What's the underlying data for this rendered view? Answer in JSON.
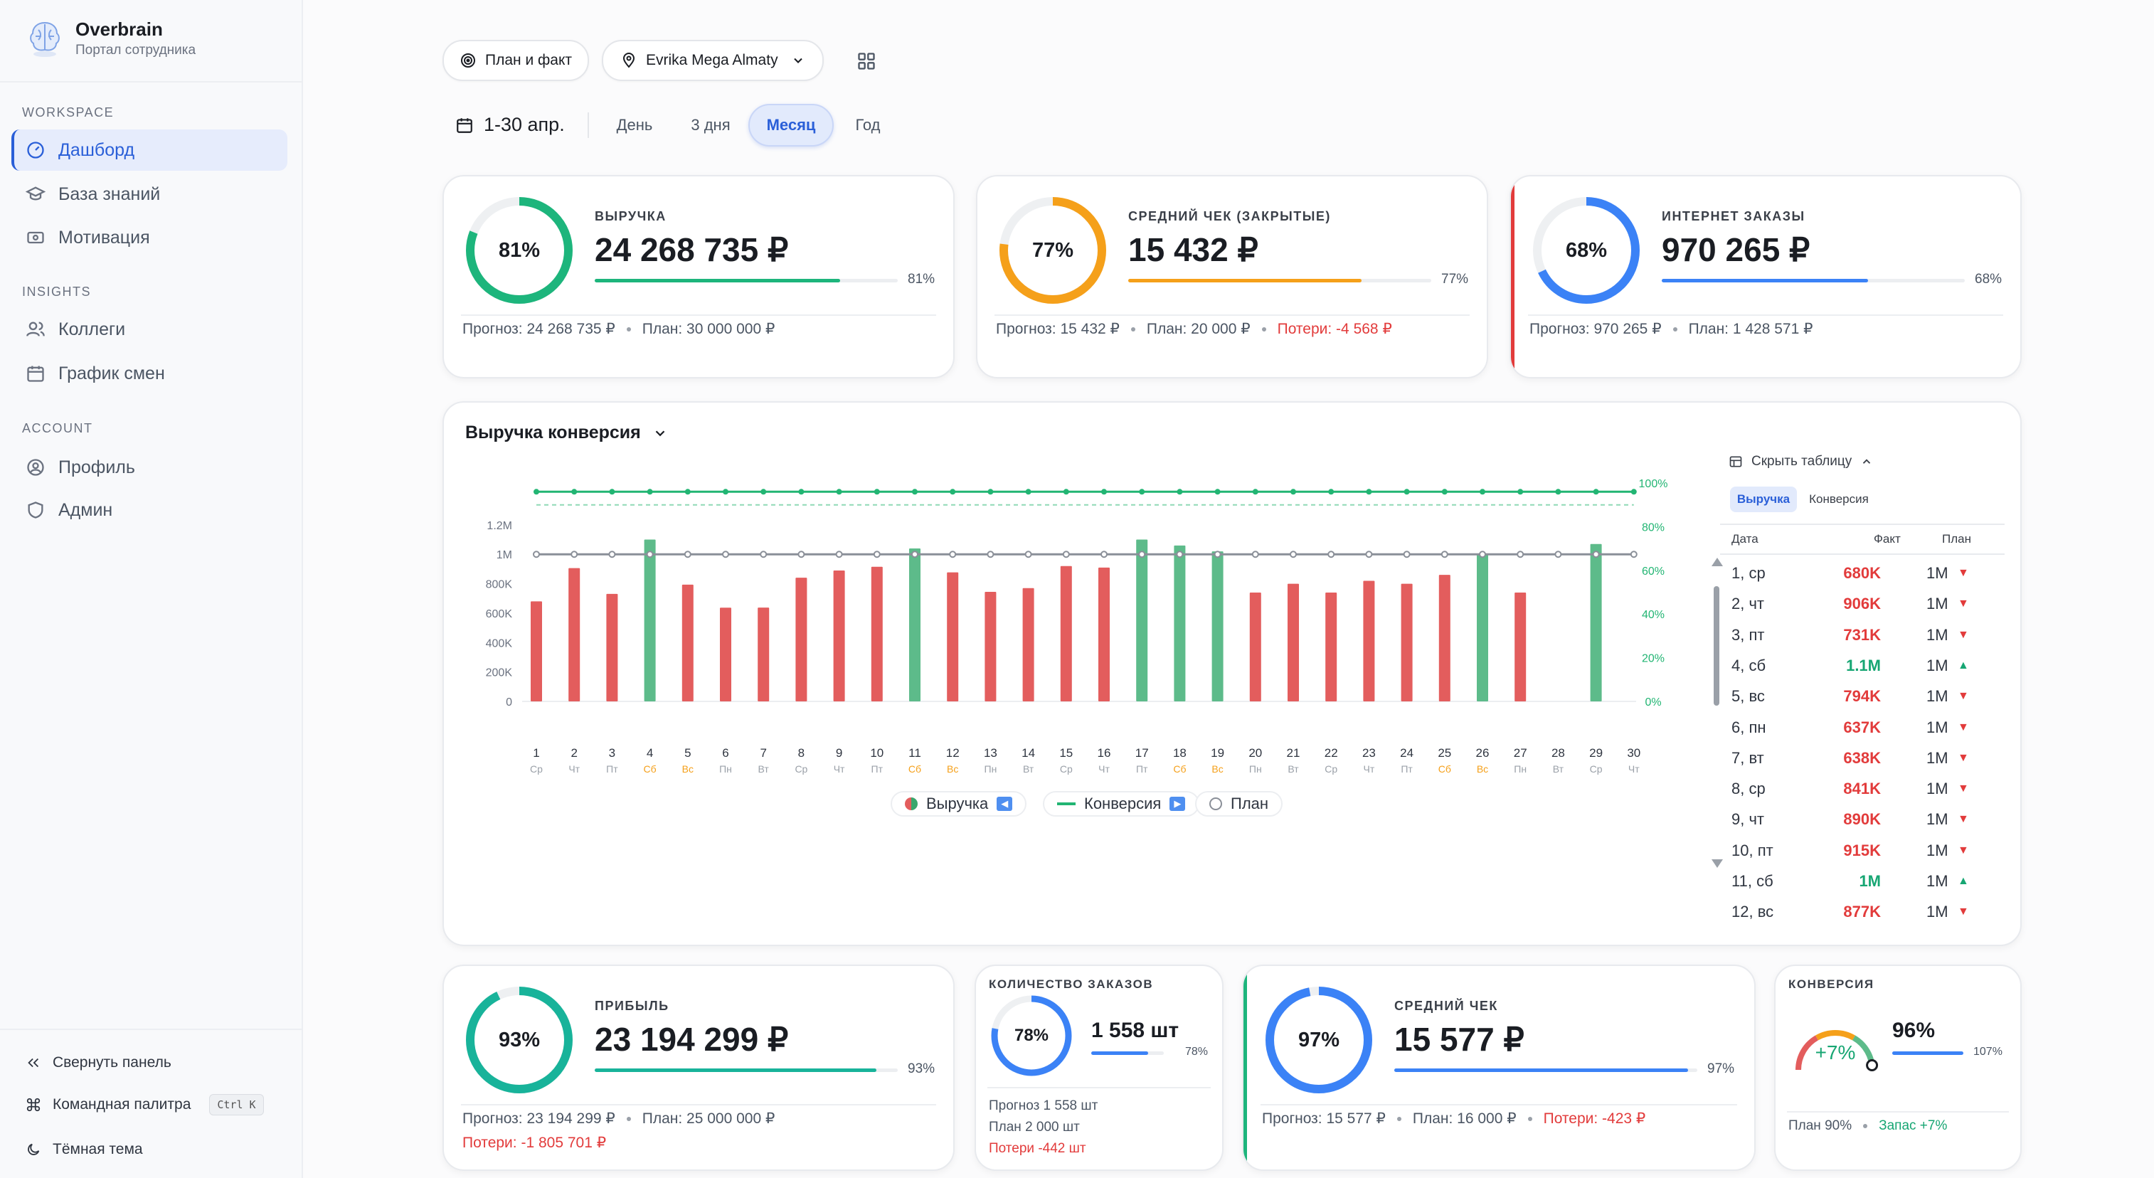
{
  "sidebar": {
    "brand": "Overbrain",
    "subtitle": "Портал сотрудника",
    "sections": [
      {
        "label": "WORKSPACE",
        "items": [
          {
            "label": "Дашборд",
            "icon": "gauge-icon",
            "active": true
          },
          {
            "label": "База знаний",
            "icon": "graduation-cap-icon"
          },
          {
            "label": "Мотивация",
            "icon": "banknote-icon"
          }
        ]
      },
      {
        "label": "INSIGHTS",
        "items": [
          {
            "label": "Коллеги",
            "icon": "users-icon"
          },
          {
            "label": "График смен",
            "icon": "calendar-icon"
          }
        ]
      },
      {
        "label": "ACCOUNT",
        "items": [
          {
            "label": "Профиль",
            "icon": "user-circle-icon"
          },
          {
            "label": "Админ",
            "icon": "shield-icon"
          }
        ]
      }
    ],
    "footer": {
      "collapse": "Свернуть панель",
      "palette": "Командная палитра",
      "palette_kbd": "Ctrl K",
      "theme": "Тёмная тема"
    }
  },
  "toolbar": {
    "mode": "План и факт",
    "store": "Evrika Mega Almaty",
    "period": "1-30 апр.",
    "ranges": [
      "День",
      "3 дня",
      "Месяц",
      "Год"
    ],
    "active_range": "Месяц"
  },
  "kpis_top": [
    {
      "label": "ВЫРУЧКА",
      "value": "24 268 735 ₽",
      "pct": 81,
      "pct_label": "81%",
      "color": "#1db57c",
      "foot": [
        {
          "text": "Прогноз: 24 268 735 ₽"
        },
        {
          "text": "План: 30 000 000 ₽"
        }
      ]
    },
    {
      "label": "СРЕДНИЙ ЧЕК (ЗАКРЫТЫЕ)",
      "value": "15 432 ₽",
      "pct": 77,
      "pct_label": "77%",
      "color": "#f5a01a",
      "foot": [
        {
          "text": "Прогноз: 15 432 ₽"
        },
        {
          "text": "План: 20 000 ₽"
        },
        {
          "text": "Потери: -4 568 ₽",
          "loss": true
        }
      ]
    },
    {
      "label": "ИНТЕРНЕТ ЗАКАЗЫ",
      "value": "970 265 ₽",
      "pct": 68,
      "pct_label": "68%",
      "color": "#3b82f6",
      "accent": "#e23b3b",
      "foot": [
        {
          "text": "Прогноз: 970 265 ₽"
        },
        {
          "text": "План: 1 428 571 ₽"
        }
      ]
    }
  ],
  "chart": {
    "title": "Выручка конверсия",
    "legend": {
      "revenue": "Выручка",
      "conversion": "Конверсия",
      "plan": "План"
    },
    "table": {
      "toggle": "Скрыть таблицу",
      "tabs": [
        "Выручка",
        "Конверсия"
      ],
      "headers": {
        "date": "Дата",
        "fact": "Факт",
        "plan": "План"
      },
      "rows": [
        {
          "date": "1, ср",
          "fact": "680K",
          "plan": "1M",
          "up": false
        },
        {
          "date": "2, чт",
          "fact": "906K",
          "plan": "1M",
          "up": false
        },
        {
          "date": "3, пт",
          "fact": "731K",
          "plan": "1M",
          "up": false
        },
        {
          "date": "4, сб",
          "fact": "1.1M",
          "plan": "1M",
          "up": true
        },
        {
          "date": "5, вс",
          "fact": "794K",
          "plan": "1M",
          "up": false
        },
        {
          "date": "6, пн",
          "fact": "637K",
          "plan": "1M",
          "up": false
        },
        {
          "date": "7, вт",
          "fact": "638K",
          "plan": "1M",
          "up": false
        },
        {
          "date": "8, ср",
          "fact": "841K",
          "plan": "1M",
          "up": false
        },
        {
          "date": "9, чт",
          "fact": "890K",
          "plan": "1M",
          "up": false
        },
        {
          "date": "10, пт",
          "fact": "915K",
          "plan": "1M",
          "up": false
        },
        {
          "date": "11, сб",
          "fact": "1M",
          "plan": "1M",
          "up": true
        },
        {
          "date": "12, вс",
          "fact": "877K",
          "plan": "1M",
          "up": false
        }
      ]
    }
  },
  "chart_data": {
    "type": "bar",
    "categories": [
      "1",
      "2",
      "3",
      "4",
      "5",
      "6",
      "7",
      "8",
      "9",
      "10",
      "11",
      "12",
      "13",
      "14",
      "15",
      "16",
      "17",
      "18",
      "19",
      "20",
      "21",
      "22",
      "23",
      "24",
      "25",
      "26",
      "27",
      "28",
      "29",
      "30"
    ],
    "weekdays": [
      "Ср",
      "Чт",
      "Пт",
      "Сб",
      "Вс",
      "Пн",
      "Вт",
      "Ср",
      "Чт",
      "Пт",
      "Сб",
      "Вс",
      "Пн",
      "Вт",
      "Ср",
      "Чт",
      "Пт",
      "Сб",
      "Вс",
      "Пн",
      "Вт",
      "Ср",
      "Чт",
      "Пт",
      "Сб",
      "Вс",
      "Пн",
      "Вт",
      "Ср",
      "Чт"
    ],
    "weekend": [
      "Сб",
      "Вс"
    ],
    "series": [
      {
        "name": "Выручка",
        "values": [
          680000,
          906000,
          731000,
          1100000,
          794000,
          637000,
          638000,
          841000,
          890000,
          915000,
          1040000,
          877000,
          745000,
          770000,
          920000,
          910000,
          1100000,
          1060000,
          1020000,
          740000,
          800000,
          740000,
          820000,
          800000,
          860000,
          1000000,
          740000,
          null,
          1070000,
          null
        ]
      },
      {
        "name": "Конверсия",
        "values": [
          96,
          96,
          96,
          96,
          96,
          96,
          96,
          96,
          96,
          96,
          96,
          96,
          96,
          96,
          96,
          96,
          96,
          96,
          96,
          96,
          96,
          96,
          96,
          96,
          96,
          96,
          96,
          96,
          96,
          96
        ]
      },
      {
        "name": "План",
        "values": [
          1000000,
          1000000,
          1000000,
          1000000,
          1000000,
          1000000,
          1000000,
          1000000,
          1000000,
          1000000,
          1000000,
          1000000,
          1000000,
          1000000,
          1000000,
          1000000,
          1000000,
          1000000,
          1000000,
          1000000,
          1000000,
          1000000,
          1000000,
          1000000,
          1000000,
          1000000,
          1000000,
          1000000,
          1000000,
          1000000
        ]
      }
    ],
    "conversion_plan": 90,
    "y_ticks": [
      "0",
      "200K",
      "400K",
      "600K",
      "800K",
      "1M",
      "1.2M"
    ],
    "y2_ticks": [
      "0%",
      "20%",
      "40%",
      "60%",
      "80%",
      "100%"
    ],
    "ylim": [
      0,
      1330000
    ],
    "y2lim": [
      0,
      100
    ],
    "colors": {
      "below": "#e35d5d",
      "above": "#5dbb8a",
      "conversion": "#22b573",
      "plan": "#8a8f98"
    }
  },
  "kpis_bottom": [
    {
      "label": "ПРИБЫЛЬ",
      "value": "23 194 299 ₽",
      "pct": 93,
      "pct_label": "93%",
      "color": "#18b39a",
      "foot1": [
        {
          "text": "Прогноз: 23 194 299 ₽"
        },
        {
          "text": "План: 25 000 000 ₽"
        }
      ],
      "foot2": [
        {
          "text": "Потери: -1 805 701 ₽",
          "loss": true
        }
      ]
    },
    {
      "label": "КОЛИЧЕСТВО ЗАКАЗОВ",
      "value": "1 558 шт",
      "pct": 78,
      "pct_label": "78%",
      "color": "#3b82f6",
      "foot": [
        "Прогноз 1 558 шт",
        "План 2 000 шт",
        "Потери -442 шт"
      ]
    },
    {
      "label": "СРЕДНИЙ ЧЕК",
      "value": "15 577 ₽",
      "pct": 97,
      "pct_label": "97%",
      "color": "#3b82f6",
      "accent": "#1db57c",
      "foot": [
        {
          "text": "Прогноз: 15 577 ₽"
        },
        {
          "text": "План: 16 000 ₽"
        },
        {
          "text": "Потери: -423 ₽",
          "loss": true
        }
      ]
    },
    {
      "label": "КОНВЕРСИЯ",
      "value": "96%",
      "gauge_label": "+7%",
      "pct": 107,
      "pct_label": "107%",
      "color": "#3b82f6",
      "foot": [
        {
          "text": "План 90%"
        },
        {
          "text": "Запас +7%",
          "gain": true
        }
      ]
    }
  ]
}
